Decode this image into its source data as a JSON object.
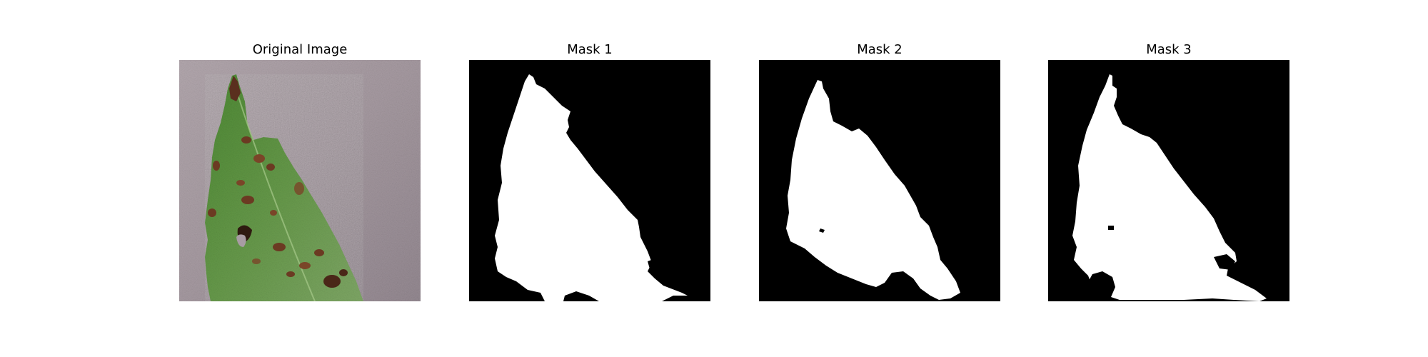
{
  "panels": [
    {
      "title": "Original Image"
    },
    {
      "title": "Mask 1"
    },
    {
      "title": "Mask 2"
    },
    {
      "title": "Mask 3"
    }
  ],
  "colors": {
    "background": "#ffffff",
    "mask_background": "#000000",
    "mask_foreground": "#ffffff",
    "leaf_green": "#5f9440",
    "leaf_spot": "#6b3a22",
    "surface_gray": "#a89ca3"
  }
}
